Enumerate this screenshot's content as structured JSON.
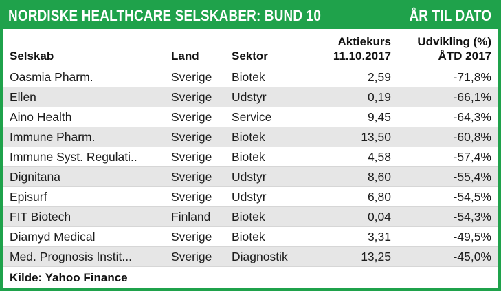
{
  "colors": {
    "green": "#1FA24B",
    "alt_row": "#E6E6E6",
    "title_text": "#FFFFFF",
    "body_text": "#1C1C1C"
  },
  "title_bar": {
    "title": "NORDISKE HEALTHCARE SELSKABER: BUND 10",
    "period_label": "ÅR TIL DATO"
  },
  "header": {
    "company": "Selskab",
    "country": "Land",
    "sector": "Sektor",
    "price_line1": "Aktiekurs",
    "price_line2": "11.10.2017",
    "change_line1": "Udvikling (%)",
    "change_line2": "ÅTD 2017"
  },
  "footer": {
    "source": "Kilde: Yahoo Finance"
  },
  "chart_data": {
    "type": "table",
    "title": "NORDISKE HEALTHCARE SELSKABER: BUND 10",
    "period": "ÅR TIL DATO",
    "columns": [
      "Selskab",
      "Land",
      "Sektor",
      "Aktiekurs 11.10.2017",
      "Udvikling (%) ÅTD 2017"
    ],
    "rows": [
      [
        "Oasmia Pharm.",
        "Sverige",
        "Biotek",
        "2,59",
        "-71,8%"
      ],
      [
        "Ellen",
        "Sverige",
        "Udstyr",
        "0,19",
        "-66,1%"
      ],
      [
        "Aino Health",
        "Sverige",
        "Service",
        "9,45",
        "-64,3%"
      ],
      [
        "Immune Pharm.",
        "Sverige",
        "Biotek",
        "13,50",
        "-60,8%"
      ],
      [
        "Immune Syst. Regulati..",
        "Sverige",
        "Biotek",
        "4,58",
        "-57,4%"
      ],
      [
        "Dignitana",
        "Sverige",
        "Udstyr",
        "8,60",
        "-55,4%"
      ],
      [
        "Episurf",
        "Sverige",
        "Udstyr",
        "6,80",
        "-54,5%"
      ],
      [
        "FIT Biotech",
        "Finland",
        "Biotek",
        "0,04",
        "-54,3%"
      ],
      [
        "Diamyd Medical",
        "Sverige",
        "Biotek",
        "3,31",
        "-49,5%"
      ],
      [
        "Med. Prognosis Instit...",
        "Sverige",
        "Diagnostik",
        "13,25",
        "-45,0%"
      ]
    ],
    "source": "Kilde: Yahoo Finance"
  }
}
